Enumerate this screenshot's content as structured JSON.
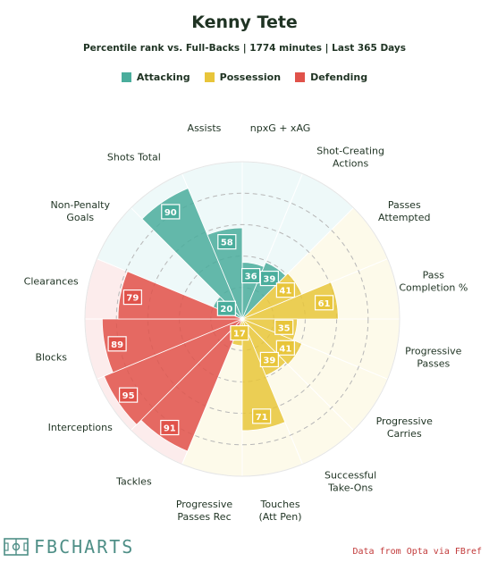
{
  "title": "Kenny Tete",
  "subtitle": "Percentile rank vs. Full-Backs | 1774 minutes | Last 365 Days",
  "legend": [
    {
      "label": "Attacking",
      "color": "#4aad9c"
    },
    {
      "label": "Possession",
      "color": "#e8c53a"
    },
    {
      "label": "Defending",
      "color": "#e0524a"
    }
  ],
  "brand": {
    "text": "FBCHARTS",
    "icon": "pitch-icon"
  },
  "source": "Data from Opta via FBref",
  "chart_data": {
    "type": "polar-bar",
    "max": 100,
    "grid_rings": [
      20,
      40,
      60,
      80
    ],
    "group_colors": {
      "Attacking": {
        "bar": "#4aad9c",
        "bg": "#eef9f9"
      },
      "Possession": {
        "bar": "#e8c53a",
        "bg": "#fdfaea"
      },
      "Defending": {
        "bar": "#e0524a",
        "bg": "#fcecec"
      }
    },
    "metrics": [
      {
        "label": "npxG + xAG",
        "value": 36,
        "group": "Attacking"
      },
      {
        "label": "Shot-Creating Actions",
        "value": 39,
        "group": "Attacking"
      },
      {
        "label": "Passes Attempted",
        "value": 41,
        "group": "Possession"
      },
      {
        "label": "Pass Completion %",
        "value": 61,
        "group": "Possession"
      },
      {
        "label": "Progressive Passes",
        "value": 35,
        "group": "Possession"
      },
      {
        "label": "Progressive Carries",
        "value": 41,
        "group": "Possession"
      },
      {
        "label": "Successful Take-Ons",
        "value": 39,
        "group": "Possession"
      },
      {
        "label": "Touches (Att Pen)",
        "value": 71,
        "group": "Possession"
      },
      {
        "label": "Progressive Passes Rec",
        "value": 17,
        "group": "Possession"
      },
      {
        "label": "Tackles",
        "value": 91,
        "group": "Defending"
      },
      {
        "label": "Interceptions",
        "value": 95,
        "group": "Defending"
      },
      {
        "label": "Blocks",
        "value": 89,
        "group": "Defending"
      },
      {
        "label": "Clearances",
        "value": 79,
        "group": "Defending"
      },
      {
        "label": "Non-Penalty Goals",
        "value": 20,
        "group": "Attacking"
      },
      {
        "label": "Shots Total",
        "value": 90,
        "group": "Attacking"
      },
      {
        "label": "Assists",
        "value": 58,
        "group": "Attacking"
      }
    ]
  }
}
